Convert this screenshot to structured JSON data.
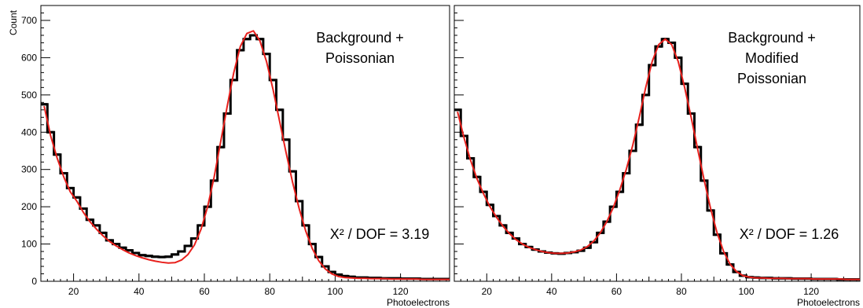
{
  "chart_data": [
    {
      "type": "histogram-with-fit",
      "ylabel": "Count",
      "xlabel": "Photoelectrons",
      "xlim": [
        10,
        135
      ],
      "ylim": [
        0,
        740
      ],
      "xticks": [
        20,
        40,
        60,
        80,
        100,
        120
      ],
      "yticks": [
        0,
        100,
        200,
        300,
        400,
        500,
        600,
        700
      ],
      "annotation_lines": [
        "Background +",
        "Poissonian"
      ],
      "chi2_text": "X² / DOF = 3.19",
      "series": [
        {
          "kind": "histogram",
          "color": "#000000",
          "x": [
            10,
            12,
            14,
            16,
            18,
            20,
            22,
            24,
            26,
            28,
            30,
            32,
            34,
            36,
            38,
            40,
            42,
            44,
            46,
            48,
            50,
            52,
            54,
            56,
            58,
            60,
            62,
            64,
            66,
            68,
            70,
            72,
            74,
            76,
            78,
            80,
            82,
            84,
            86,
            88,
            90,
            92,
            94,
            96,
            98,
            100,
            102,
            104,
            106,
            108,
            110,
            112,
            114,
            116,
            118,
            120,
            122,
            124,
            126,
            128,
            130,
            132,
            134
          ],
          "y": [
            475,
            400,
            340,
            290,
            250,
            225,
            195,
            165,
            150,
            130,
            110,
            100,
            90,
            83,
            76,
            70,
            68,
            66,
            65,
            66,
            72,
            80,
            95,
            115,
            150,
            200,
            270,
            360,
            450,
            540,
            620,
            650,
            660,
            650,
            610,
            540,
            460,
            380,
            295,
            215,
            150,
            100,
            65,
            40,
            25,
            18,
            14,
            12,
            10,
            10,
            9,
            9,
            8,
            8,
            8,
            7,
            7,
            7,
            6,
            6,
            6,
            6,
            6
          ]
        },
        {
          "kind": "fit",
          "color": "#e8201c",
          "x": [
            10,
            12,
            14,
            16,
            18,
            20,
            22,
            24,
            26,
            28,
            30,
            32,
            34,
            36,
            38,
            40,
            42,
            44,
            46,
            48,
            50,
            52,
            54,
            56,
            58,
            60,
            62,
            64,
            66,
            68,
            70,
            72,
            74,
            76,
            78,
            80,
            82,
            84,
            86,
            88,
            90,
            92,
            94,
            96,
            98,
            100,
            102,
            104,
            106,
            108,
            110,
            112,
            114,
            116,
            118,
            120,
            122,
            124,
            126,
            128,
            130,
            132,
            134
          ],
          "y": [
            470,
            390,
            330,
            280,
            240,
            215,
            185,
            160,
            140,
            122,
            107,
            95,
            85,
            76,
            69,
            63,
            58,
            54,
            51,
            49,
            50,
            57,
            72,
            98,
            140,
            200,
            280,
            375,
            470,
            560,
            630,
            665,
            672,
            645,
            590,
            515,
            430,
            345,
            265,
            195,
            135,
            88,
            55,
            33,
            20,
            13,
            10,
            9,
            8,
            8,
            7,
            7,
            7,
            6,
            6,
            6,
            6,
            6,
            5,
            5,
            5,
            5,
            5
          ]
        }
      ]
    },
    {
      "type": "histogram-with-fit",
      "ylabel": "",
      "xlabel": "Photoelectrons",
      "xlim": [
        10,
        135
      ],
      "ylim": [
        0,
        740
      ],
      "xticks": [
        20,
        40,
        60,
        80,
        100,
        120
      ],
      "yticks": [],
      "annotation_lines": [
        "Background +",
        "Modified",
        "Poissonian"
      ],
      "chi2_text": "X² / DOF = 1.26",
      "series": [
        {
          "kind": "histogram",
          "color": "#000000",
          "x": [
            10,
            12,
            14,
            16,
            18,
            20,
            22,
            24,
            26,
            28,
            30,
            32,
            34,
            36,
            38,
            40,
            42,
            44,
            46,
            48,
            50,
            52,
            54,
            56,
            58,
            60,
            62,
            64,
            66,
            68,
            70,
            72,
            74,
            76,
            78,
            80,
            82,
            84,
            86,
            88,
            90,
            92,
            94,
            96,
            98,
            100,
            102,
            104,
            106,
            108,
            110,
            112,
            114,
            116,
            118,
            120,
            122,
            124,
            126,
            128,
            130,
            132,
            134
          ],
          "y": [
            460,
            390,
            330,
            280,
            240,
            205,
            175,
            150,
            130,
            115,
            100,
            92,
            85,
            80,
            77,
            75,
            74,
            76,
            78,
            82,
            90,
            105,
            130,
            160,
            200,
            240,
            290,
            350,
            420,
            500,
            580,
            630,
            650,
            640,
            600,
            530,
            450,
            360,
            270,
            190,
            125,
            75,
            45,
            25,
            15,
            11,
            10,
            9,
            9,
            8,
            8,
            8,
            7,
            7,
            7,
            6,
            6,
            6,
            6,
            5,
            5,
            5,
            5
          ]
        },
        {
          "kind": "fit",
          "color": "#e8201c",
          "x": [
            10,
            12,
            14,
            16,
            18,
            20,
            22,
            24,
            26,
            28,
            30,
            32,
            34,
            36,
            38,
            40,
            42,
            44,
            46,
            48,
            50,
            52,
            54,
            56,
            58,
            60,
            62,
            64,
            66,
            68,
            70,
            72,
            74,
            76,
            78,
            80,
            82,
            84,
            86,
            88,
            90,
            92,
            94,
            96,
            98,
            100,
            102,
            104,
            106,
            108,
            110,
            112,
            114,
            116,
            118,
            120,
            122,
            124,
            126,
            128,
            130,
            132,
            134
          ],
          "y": [
            455,
            385,
            325,
            275,
            235,
            200,
            172,
            148,
            128,
            112,
            100,
            91,
            85,
            80,
            77,
            75,
            75,
            76,
            79,
            84,
            93,
            108,
            130,
            160,
            198,
            245,
            300,
            365,
            440,
            520,
            590,
            635,
            650,
            635,
            590,
            520,
            440,
            355,
            272,
            195,
            130,
            80,
            46,
            26,
            15,
            11,
            9,
            9,
            8,
            8,
            8,
            7,
            7,
            7,
            7,
            6,
            6,
            6,
            6,
            6,
            5,
            5,
            5
          ]
        }
      ]
    }
  ]
}
